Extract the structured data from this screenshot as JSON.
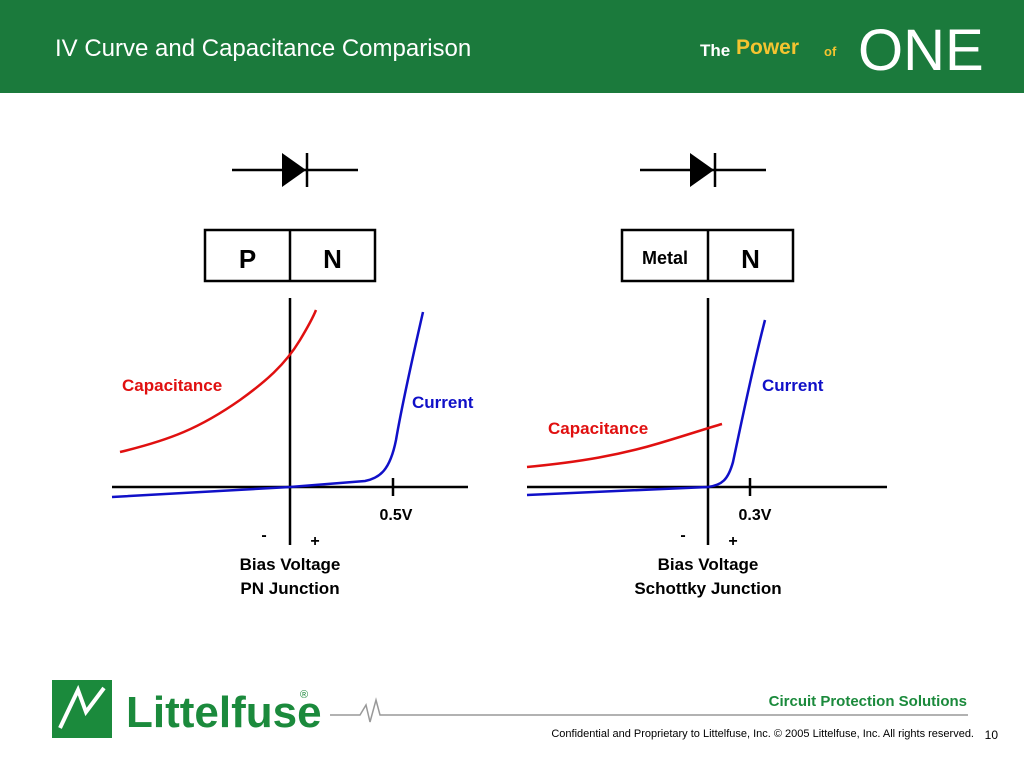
{
  "header": {
    "title": "IV Curve and Capacitance Comparison",
    "brand": {
      "the": "The",
      "power": "Power",
      "of": "of",
      "one": "ONE"
    }
  },
  "panels": [
    {
      "junction": [
        "P",
        "N"
      ],
      "capacitance_label": "Capacitance",
      "current_label": "Current",
      "voltage_label": "0.5V",
      "minus": "-",
      "plus": "+",
      "caption": [
        "Bias Voltage",
        "PN Junction"
      ]
    },
    {
      "junction": [
        "Metal",
        "N"
      ],
      "capacitance_label": "Capacitance",
      "current_label": "Current",
      "voltage_label": "0.3V",
      "minus": "-",
      "plus": "+",
      "caption": [
        "Bias Voltage",
        "Schottky Junction"
      ]
    }
  ],
  "footer": {
    "company": "Littelfuse",
    "registered": "®",
    "tagline": "Circuit Protection Solutions",
    "confidential": "Confidential and Proprietary to Littelfuse, Inc.  © 2005 Littelfuse, Inc.  All rights reserved.",
    "page": "10"
  }
}
